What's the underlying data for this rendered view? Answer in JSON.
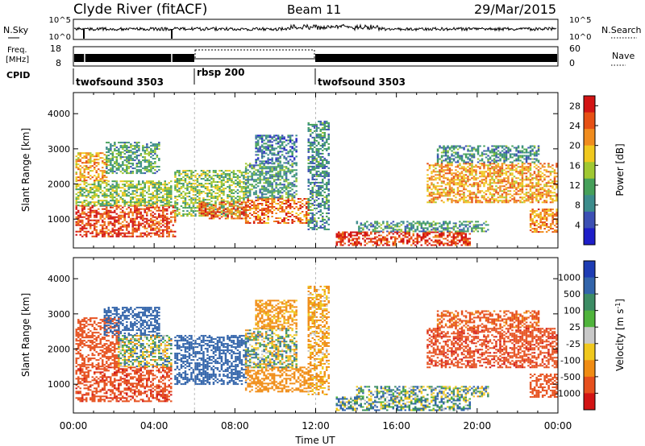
{
  "header": {
    "station": "Clyde River (fitACF)",
    "beam": "Beam 11",
    "date": "29/Mar/2015"
  },
  "top_panels": {
    "nsky_label": "N.Sky",
    "nsky_ticks": [
      "10^5",
      "10^0"
    ],
    "nsearch_label": "N.Search",
    "nsearch_ticks": [
      "10^5",
      "10^0"
    ],
    "freq_label_1": "Freq.",
    "freq_label_2": "[MHz]",
    "freq_ticks": [
      "18",
      "8"
    ],
    "nave_label": "Nave",
    "nave_ticks": [
      "60",
      "0"
    ],
    "cpid_label": "CPID",
    "cpid_segments": [
      {
        "name": "twofsound 3503",
        "start_hour": 0
      },
      {
        "name": "rbsp 200",
        "start_hour": 6
      },
      {
        "name": "twofsound 3503",
        "start_hour": 12
      }
    ]
  },
  "x_axis": {
    "label": "Time UT",
    "ticks": [
      "00:00",
      "04:00",
      "08:00",
      "12:00",
      "16:00",
      "20:00",
      "00:00"
    ]
  },
  "colors": {
    "power": [
      "#1e1ec8",
      "#3c50b4",
      "#3c8c8c",
      "#46a05a",
      "#a0c832",
      "#f0c81e",
      "#f08c1e",
      "#e65014",
      "#d21414"
    ],
    "velocity": [
      "#1e3cb4",
      "#3264aa",
      "#3c8c64",
      "#50b43c",
      "#c8c8c8",
      "#f0c81e",
      "#f08c14",
      "#e6501e",
      "#d21414"
    ]
  },
  "chart_data": [
    {
      "type": "heatmap",
      "title": "Power",
      "ylabel": "Slant Range [km]",
      "xlabel": "",
      "xlim": [
        0,
        24
      ],
      "ylim": [
        180,
        4600
      ],
      "yticks": [
        "1000",
        "2000",
        "3000",
        "4000"
      ],
      "colorbar": {
        "label": "Power [dB]",
        "ticks": [
          "4",
          "8",
          "12",
          "16",
          "20",
          "24",
          "28"
        ],
        "range": [
          0,
          30
        ]
      },
      "series": [
        {
          "x0": 0.1,
          "x1": 5.0,
          "y0": 500,
          "y1": 1400,
          "value": 26
        },
        {
          "x0": 0.1,
          "x1": 4.8,
          "y0": 1400,
          "y1": 2100,
          "value": 14
        },
        {
          "x0": 0.1,
          "x1": 1.6,
          "y0": 2100,
          "y1": 2900,
          "value": 21
        },
        {
          "x0": 1.6,
          "x1": 4.2,
          "y0": 2300,
          "y1": 3200,
          "value": 11
        },
        {
          "x0": 5.0,
          "x1": 8.5,
          "y0": 1100,
          "y1": 2400,
          "value": 14
        },
        {
          "x0": 6.2,
          "x1": 8.5,
          "y0": 1000,
          "y1": 1500,
          "value": 24
        },
        {
          "x0": 8.5,
          "x1": 11.6,
          "y0": 900,
          "y1": 1600,
          "value": 24
        },
        {
          "x0": 8.5,
          "x1": 11.0,
          "y0": 1600,
          "y1": 2600,
          "value": 10
        },
        {
          "x0": 9.0,
          "x1": 11.0,
          "y0": 2600,
          "y1": 3400,
          "value": 7
        },
        {
          "x0": 11.6,
          "x1": 12.6,
          "y0": 700,
          "y1": 3800,
          "value": 9
        },
        {
          "x0": 13.0,
          "x1": 19.6,
          "y0": 250,
          "y1": 650,
          "value": 27
        },
        {
          "x0": 14.0,
          "x1": 20.5,
          "y0": 650,
          "y1": 950,
          "value": 10
        },
        {
          "x0": 17.5,
          "x1": 23.9,
          "y0": 1500,
          "y1": 2600,
          "value": 21
        },
        {
          "x0": 18.0,
          "x1": 23.0,
          "y0": 2600,
          "y1": 3100,
          "value": 9
        },
        {
          "x0": 22.6,
          "x1": 23.9,
          "y0": 650,
          "y1": 1300,
          "value": 22
        }
      ]
    },
    {
      "type": "heatmap",
      "title": "Velocity",
      "ylabel": "Slant Range [km]",
      "xlabel": "Time UT",
      "xlim": [
        0,
        24
      ],
      "ylim": [
        180,
        4600
      ],
      "yticks": [
        "1000",
        "2000",
        "3000",
        "4000"
      ],
      "colorbar": {
        "label": "Velocity [m s^-1]",
        "ticks": [
          "1000",
          "500",
          "100",
          "25",
          "-25",
          "-100",
          "-500",
          "-1000"
        ],
        "range": [
          -1000,
          1000
        ]
      },
      "series": [
        {
          "x0": 0.1,
          "x1": 4.8,
          "y0": 500,
          "y1": 1500,
          "value": -900
        },
        {
          "x0": 0.1,
          "x1": 2.2,
          "y0": 1500,
          "y1": 2900,
          "value": -700
        },
        {
          "x0": 2.2,
          "x1": 4.8,
          "y0": 1500,
          "y1": 2400,
          "value": 0
        },
        {
          "x0": 1.5,
          "x1": 4.2,
          "y0": 2400,
          "y1": 3200,
          "value": 250
        },
        {
          "x0": 5.0,
          "x1": 8.5,
          "y0": 1000,
          "y1": 2400,
          "value": 300
        },
        {
          "x0": 8.5,
          "x1": 11.6,
          "y0": 800,
          "y1": 1500,
          "value": -350
        },
        {
          "x0": 8.5,
          "x1": 11.0,
          "y0": 1500,
          "y1": 2600,
          "value": 0
        },
        {
          "x0": 9.0,
          "x1": 11.0,
          "y0": 2600,
          "y1": 3400,
          "value": -200
        },
        {
          "x0": 11.6,
          "x1": 12.6,
          "y0": 700,
          "y1": 3800,
          "value": -150
        },
        {
          "x0": 13.0,
          "x1": 19.6,
          "y0": 250,
          "y1": 650,
          "value": 60
        },
        {
          "x0": 14.0,
          "x1": 20.5,
          "y0": 650,
          "y1": 950,
          "value": 40
        },
        {
          "x0": 17.5,
          "x1": 23.9,
          "y0": 1500,
          "y1": 2600,
          "value": -900
        },
        {
          "x0": 18.0,
          "x1": 23.0,
          "y0": 2600,
          "y1": 3100,
          "value": -600
        },
        {
          "x0": 22.6,
          "x1": 23.9,
          "y0": 650,
          "y1": 1300,
          "value": -800
        }
      ]
    }
  ]
}
